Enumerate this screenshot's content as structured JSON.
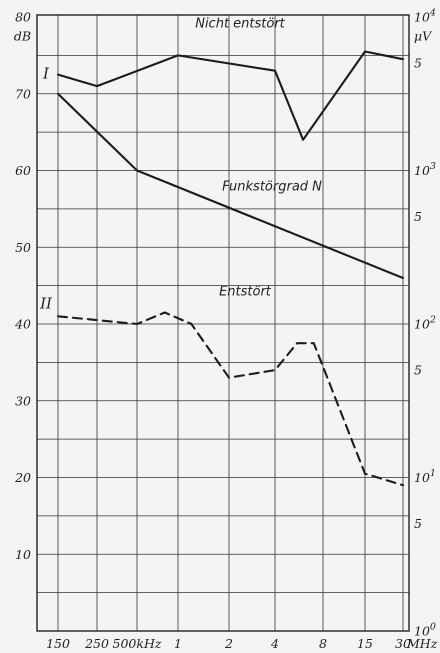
{
  "chart_data": {
    "type": "line",
    "x_scale": "log",
    "x_unit_label": "MHz",
    "x_ticks": [
      {
        "mhz": 0.15,
        "label": "150"
      },
      {
        "mhz": 0.25,
        "label": "250"
      },
      {
        "mhz": 0.5,
        "label": "500kHz"
      },
      {
        "mhz": 1,
        "label": "1"
      },
      {
        "mhz": 2,
        "label": "2"
      },
      {
        "mhz": 4,
        "label": "4"
      },
      {
        "mhz": 8,
        "label": "8"
      },
      {
        "mhz": 15,
        "label": "15"
      },
      {
        "mhz": 30,
        "label": "30"
      }
    ],
    "y_left": {
      "unit": "dB",
      "min": 0,
      "max": 80,
      "ticks": [
        10,
        20,
        30,
        40,
        50,
        60,
        70,
        80
      ]
    },
    "y_right": {
      "unit": "μV",
      "ticks": [
        {
          "db": 0,
          "base": "10",
          "exp": "0"
        },
        {
          "db": 14,
          "base": "5",
          "exp": ""
        },
        {
          "db": 20,
          "base": "10",
          "exp": "1"
        },
        {
          "db": 34,
          "base": "5",
          "exp": ""
        },
        {
          "db": 40,
          "base": "10",
          "exp": "2"
        },
        {
          "db": 54,
          "base": "5",
          "exp": ""
        },
        {
          "db": 60,
          "base": "10",
          "exp": "3"
        },
        {
          "db": 74,
          "base": "5",
          "exp": ""
        },
        {
          "db": 80,
          "base": "10",
          "exp": "4"
        }
      ]
    },
    "grid": true,
    "series": [
      {
        "name": "Nicht entstört",
        "marker": "I",
        "style": "solid",
        "points": [
          [
            0.15,
            72.5
          ],
          [
            0.25,
            71
          ],
          [
            1,
            75
          ],
          [
            4,
            73
          ],
          [
            6,
            64
          ],
          [
            15,
            75.5
          ],
          [
            30,
            74.5
          ]
        ]
      },
      {
        "name": "Funkstörgrad N",
        "marker": "",
        "style": "solid",
        "points": [
          [
            0.15,
            70
          ],
          [
            0.5,
            60
          ],
          [
            30,
            46
          ]
        ]
      },
      {
        "name": "Entstört",
        "marker": "II",
        "style": "dashed",
        "points": [
          [
            0.15,
            41
          ],
          [
            0.5,
            40
          ],
          [
            0.8,
            41.5
          ],
          [
            1.2,
            40
          ],
          [
            2,
            33
          ],
          [
            4,
            34
          ],
          [
            5.5,
            37.5
          ],
          [
            7,
            37.5
          ],
          [
            15,
            20.5
          ],
          [
            30,
            19
          ]
        ]
      }
    ]
  }
}
